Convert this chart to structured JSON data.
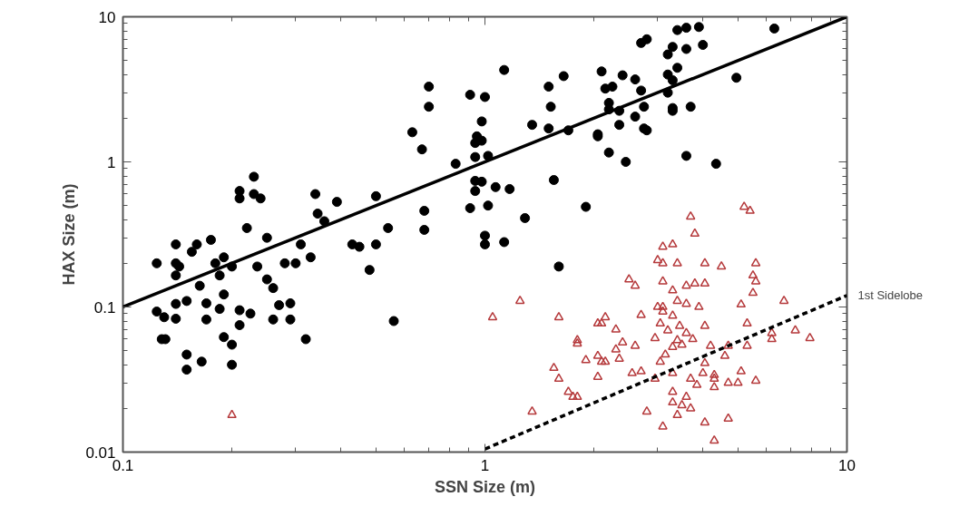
{
  "chart_data": {
    "type": "scatter",
    "xlabel": "SSN Size (m)",
    "ylabel": "HAX Size (m)",
    "log": "xy",
    "grid": false,
    "legend": false,
    "xlim": [
      0.1,
      10
    ],
    "ylim": [
      0.01,
      10
    ],
    "xticks": [
      0.1,
      1,
      10
    ],
    "yticks": [
      0.01,
      0.1,
      1,
      10
    ],
    "series": [
      {
        "type": "scatter",
        "marker": "circle",
        "color": "#000000",
        "x": [
          0.23,
          0.21,
          0.21,
          0.23,
          0.24,
          0.34,
          0.39,
          0.5,
          0.345,
          0.36,
          0.54,
          0.22,
          0.25,
          0.175,
          0.14,
          0.155,
          0.16,
          0.43,
          0.45,
          0.5,
          0.31,
          0.124,
          0.14,
          0.143,
          0.14,
          0.18,
          0.19,
          0.185,
          0.2,
          0.235,
          0.28,
          0.3,
          0.33,
          0.48,
          0.163,
          0.25,
          0.26,
          0.19,
          0.14,
          0.15,
          0.17,
          0.185,
          0.124,
          0.13,
          0.14,
          0.17,
          0.21,
          0.225,
          0.26,
          0.27,
          0.29,
          0.29,
          0.21,
          0.128,
          0.131,
          0.19,
          0.2,
          0.32,
          0.15,
          0.165,
          0.15,
          0.2,
          0.56,
          0.7,
          0.7,
          0.63,
          0.67,
          0.91,
          1.0,
          0.98,
          0.95,
          0.94,
          0.98,
          0.94,
          1.02,
          0.83,
          0.94,
          0.98,
          0.94,
          1.07,
          1.17,
          0.91,
          1.02,
          0.68,
          0.68,
          1.0,
          1.0,
          1.13,
          1.29,
          1.55,
          1.9,
          1.6,
          1.35,
          1.5,
          1.7,
          1.5,
          1.52,
          2.05,
          2.2,
          2.45,
          2.35,
          2.6,
          2.75,
          2.75,
          2.2,
          2.2,
          2.15,
          2.25,
          2.7,
          1.65,
          1.13,
          3.4,
          3.6,
          3.9,
          6.3,
          2.7,
          2.8,
          3.3,
          3.6,
          4.0,
          3.2,
          3.4,
          3.2,
          3.3,
          4.95,
          2.1,
          2.4,
          2.6,
          3.2,
          2.35,
          3.3,
          3.3,
          3.7,
          2.05,
          2.8,
          3.6,
          4.35
        ],
        "values": [
          0.79,
          0.63,
          0.56,
          0.6,
          0.56,
          0.6,
          0.53,
          0.58,
          0.44,
          0.39,
          0.35,
          0.35,
          0.3,
          0.29,
          0.27,
          0.24,
          0.27,
          0.27,
          0.26,
          0.27,
          0.27,
          0.2,
          0.2,
          0.19,
          0.165,
          0.2,
          0.22,
          0.165,
          0.19,
          0.19,
          0.2,
          0.2,
          0.22,
          0.18,
          0.14,
          0.155,
          0.135,
          0.122,
          0.105,
          0.11,
          0.106,
          0.097,
          0.093,
          0.085,
          0.083,
          0.082,
          0.095,
          0.09,
          0.082,
          0.103,
          0.106,
          0.082,
          0.075,
          0.06,
          0.06,
          0.062,
          0.055,
          0.06,
          0.047,
          0.042,
          0.037,
          0.04,
          0.08,
          3.3,
          2.4,
          1.6,
          1.22,
          2.9,
          2.8,
          1.9,
          1.5,
          1.35,
          1.4,
          1.08,
          1.1,
          0.97,
          0.74,
          0.73,
          0.63,
          0.67,
          0.65,
          0.48,
          0.5,
          0.46,
          0.34,
          0.31,
          0.27,
          0.28,
          0.41,
          0.75,
          0.49,
          0.19,
          1.8,
          1.7,
          1.65,
          3.3,
          2.4,
          1.5,
          1.16,
          1.0,
          1.8,
          2.05,
          1.7,
          2.4,
          2.55,
          2.3,
          3.2,
          3.3,
          3.1,
          3.9,
          4.3,
          8.1,
          8.4,
          8.5,
          8.3,
          6.6,
          7.0,
          6.2,
          6.0,
          6.4,
          5.5,
          4.45,
          4.0,
          3.65,
          3.8,
          4.2,
          3.95,
          3.7,
          3.0,
          2.25,
          2.35,
          2.25,
          2.4,
          1.55,
          1.65,
          1.1,
          0.97
        ]
      },
      {
        "type": "scatter",
        "marker": "triangle",
        "color": "#b5393b",
        "x": [
          5.2,
          5.4,
          3.7,
          3.8,
          3.1,
          3.3,
          3.0,
          3.1,
          3.4,
          4.05,
          4.5,
          5.6,
          5.5,
          5.6,
          2.5,
          2.6,
          3.1,
          3.3,
          3.4,
          3.6,
          3.8,
          4.05,
          5.5,
          6.7,
          5.1,
          3.6,
          3.9,
          3.0,
          3.1,
          1.25,
          1.05,
          1.6,
          2.7,
          3.1,
          2.15,
          2.05,
          2.1,
          2.3,
          3.05,
          3.3,
          3.2,
          3.45,
          3.6,
          4.05,
          5.3,
          2.95,
          3.4,
          3.75,
          6.2,
          7.2,
          7.9,
          6.2,
          1.8,
          1.8,
          2.4,
          2.6,
          2.3,
          5.3,
          4.2,
          4.7,
          3.3,
          3.5,
          3.15,
          2.05,
          2.1,
          2.15,
          2.35,
          1.9,
          4.05,
          4.6,
          3.05,
          1.55,
          1.6,
          2.05,
          2.55,
          2.7,
          2.95,
          3.3,
          3.7,
          4.0,
          4.3,
          4.3,
          4.3,
          4.7,
          5.0,
          5.1,
          5.6,
          3.85,
          3.3,
          3.6,
          3.3,
          3.5,
          3.7,
          1.7,
          1.8,
          1.75,
          1.35,
          2.8,
          3.4,
          4.05,
          4.7,
          3.1,
          4.3,
          0.2
        ],
        "values": [
          0.49,
          0.46,
          0.42,
          0.32,
          0.26,
          0.27,
          0.21,
          0.2,
          0.2,
          0.2,
          0.19,
          0.2,
          0.165,
          0.15,
          0.155,
          0.14,
          0.15,
          0.13,
          0.11,
          0.14,
          0.145,
          0.145,
          0.125,
          0.11,
          0.104,
          0.105,
          0.1,
          0.1,
          0.1,
          0.11,
          0.085,
          0.085,
          0.088,
          0.093,
          0.085,
          0.077,
          0.077,
          0.07,
          0.077,
          0.087,
          0.069,
          0.074,
          0.066,
          0.074,
          0.077,
          0.061,
          0.059,
          0.06,
          0.066,
          0.069,
          0.061,
          0.06,
          0.059,
          0.056,
          0.057,
          0.054,
          0.051,
          0.054,
          0.054,
          0.054,
          0.053,
          0.055,
          0.047,
          0.046,
          0.042,
          0.042,
          0.044,
          0.043,
          0.041,
          0.046,
          0.042,
          0.038,
          0.032,
          0.033,
          0.035,
          0.036,
          0.032,
          0.035,
          0.032,
          0.035,
          0.034,
          0.032,
          0.028,
          0.03,
          0.03,
          0.036,
          0.031,
          0.029,
          0.026,
          0.024,
          0.022,
          0.021,
          0.02,
          0.026,
          0.024,
          0.024,
          0.019,
          0.019,
          0.018,
          0.016,
          0.017,
          0.015,
          0.012,
          0.018
        ]
      },
      {
        "type": "line",
        "line_style": "solid",
        "color": "#000000",
        "x": [
          0.1,
          10
        ],
        "values": [
          0.1,
          10
        ]
      },
      {
        "type": "line",
        "line_style": "dashed",
        "color": "#000000",
        "name": "1st Sidelobe",
        "x": [
          1,
          10
        ],
        "values": [
          0.0105,
          0.12
        ]
      }
    ]
  }
}
